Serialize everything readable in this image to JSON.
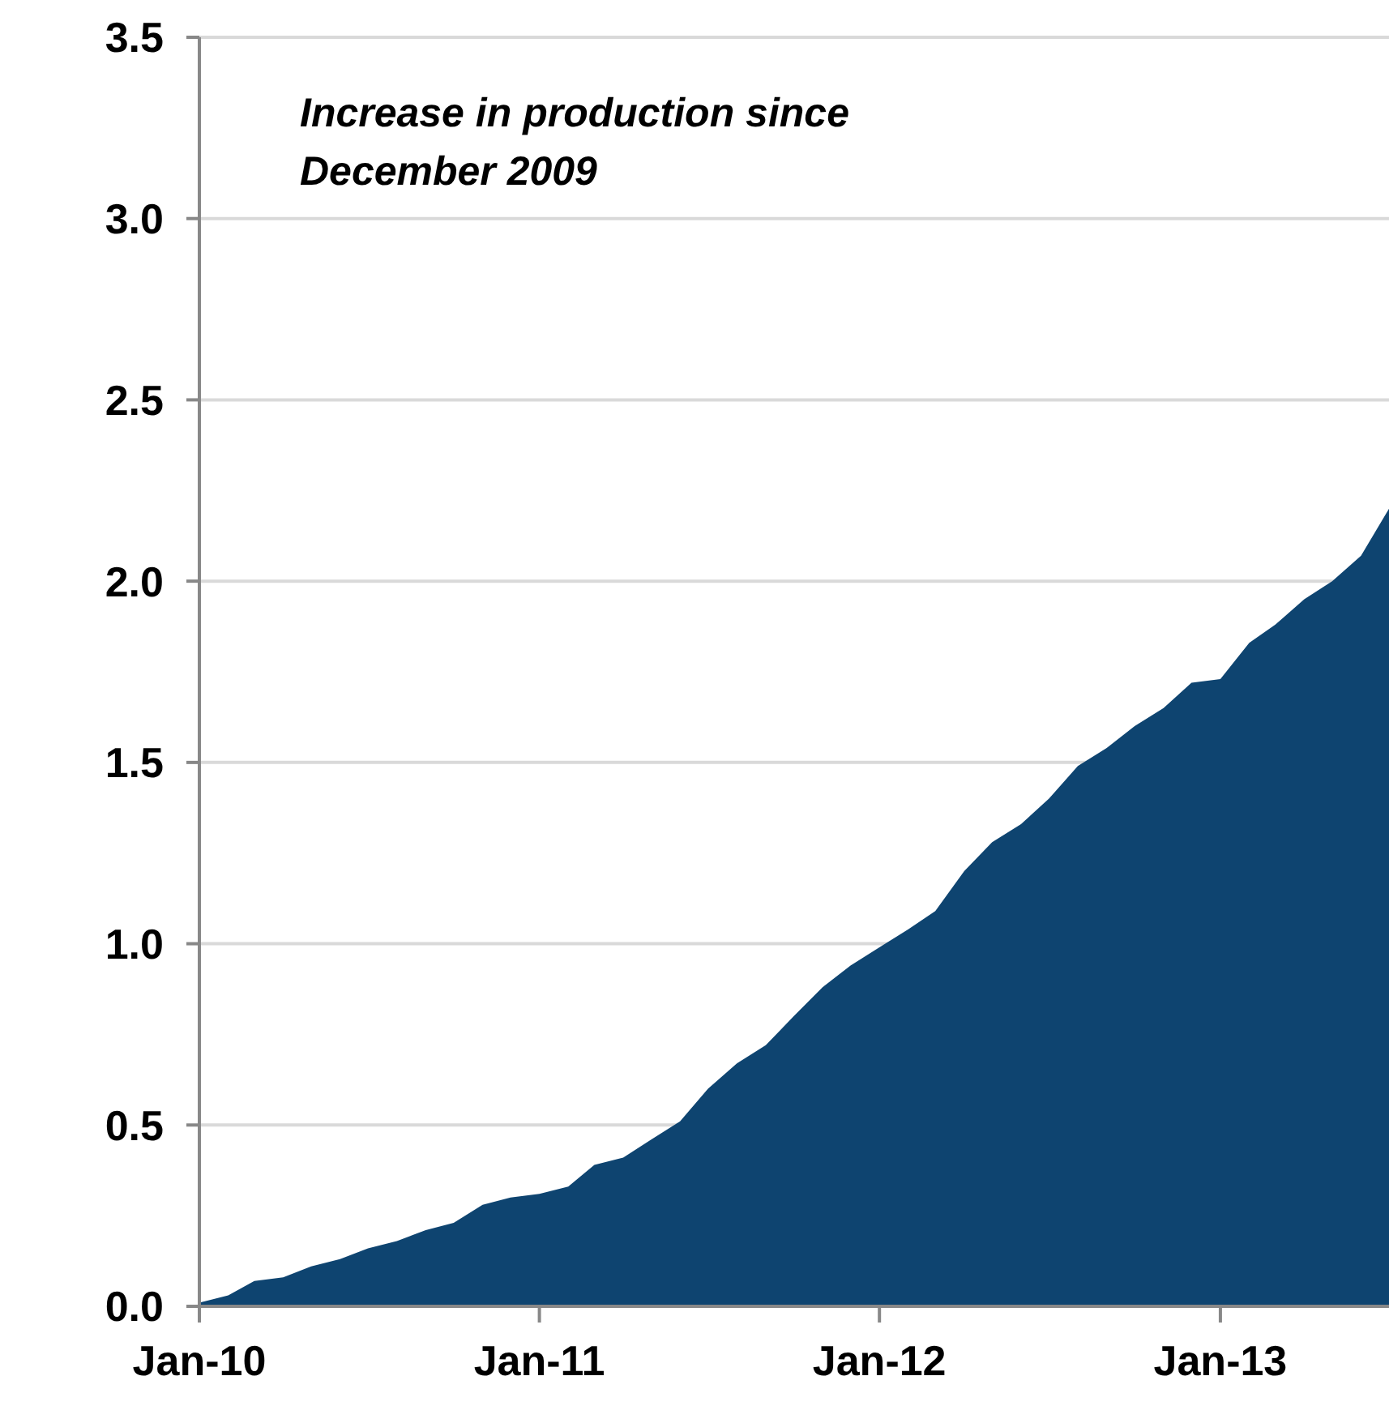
{
  "chart_data": {
    "type": "area",
    "annotations": [
      "Increase in production since December 2009"
    ],
    "x": [
      "2010-01",
      "2010-02",
      "2010-03",
      "2010-04",
      "2010-05",
      "2010-06",
      "2010-07",
      "2010-08",
      "2010-09",
      "2010-10",
      "2010-11",
      "2010-12",
      "2011-01",
      "2011-02",
      "2011-03",
      "2011-04",
      "2011-05",
      "2011-06",
      "2011-07",
      "2011-08",
      "2011-09",
      "2011-10",
      "2011-11",
      "2011-12",
      "2012-01",
      "2012-02",
      "2012-03",
      "2012-04",
      "2012-05",
      "2012-06",
      "2012-07",
      "2012-08",
      "2012-09",
      "2012-10",
      "2012-11",
      "2012-12",
      "2013-01",
      "2013-02",
      "2013-03",
      "2013-04",
      "2013-05",
      "2013-06",
      "2013-07"
    ],
    "series": [
      {
        "color": "#0e4470",
        "values": [
          0.01,
          0.03,
          0.07,
          0.08,
          0.11,
          0.13,
          0.16,
          0.18,
          0.21,
          0.23,
          0.28,
          0.3,
          0.31,
          0.33,
          0.39,
          0.41,
          0.46,
          0.51,
          0.6,
          0.67,
          0.72,
          0.8,
          0.88,
          0.94,
          0.99,
          1.04,
          1.09,
          1.2,
          1.28,
          1.33,
          1.4,
          1.49,
          1.54,
          1.6,
          1.65,
          1.72,
          1.73,
          1.83,
          1.88,
          1.95,
          2.0,
          2.07,
          2.2
        ]
      }
    ],
    "xlim": [
      "2010-01",
      "2013-07"
    ],
    "xticks": [
      {
        "value": "2010-01",
        "label": "Jan-10"
      },
      {
        "value": "2011-01",
        "label": "Jan-11"
      },
      {
        "value": "2012-01",
        "label": "Jan-12"
      },
      {
        "value": "2013-01",
        "label": "Jan-13"
      }
    ],
    "ylim": [
      0,
      3.5
    ],
    "yticks": [
      {
        "value": 0,
        "label": "0.0"
      },
      {
        "value": 0.5,
        "label": "0.5"
      },
      {
        "value": 1,
        "label": "1.0"
      },
      {
        "value": 1.5,
        "label": "1.5"
      },
      {
        "value": 2,
        "label": "2.0"
      },
      {
        "value": 2.5,
        "label": "2.5"
      },
      {
        "value": 3,
        "label": "3.0"
      },
      {
        "value": 3.5,
        "label": "3.5"
      }
    ],
    "grid": "y"
  }
}
